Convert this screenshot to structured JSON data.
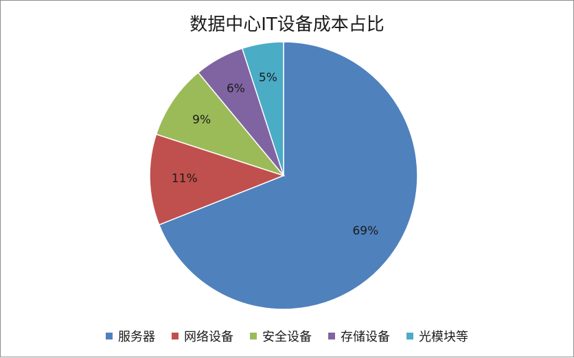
{
  "chart_data": {
    "type": "pie",
    "title": "数据中心IT设备成本占比",
    "categories": [
      "服务器",
      "网络设备",
      "安全设备",
      "存储设备",
      "光模块等"
    ],
    "values": [
      69,
      11,
      9,
      6,
      5
    ],
    "labels": [
      "69%",
      "11%",
      "9%",
      "6%",
      "5%"
    ],
    "colors": [
      "#4f81bd",
      "#c0504d",
      "#9bbb59",
      "#8064a2",
      "#4bacc6"
    ],
    "legend": "bottom"
  }
}
